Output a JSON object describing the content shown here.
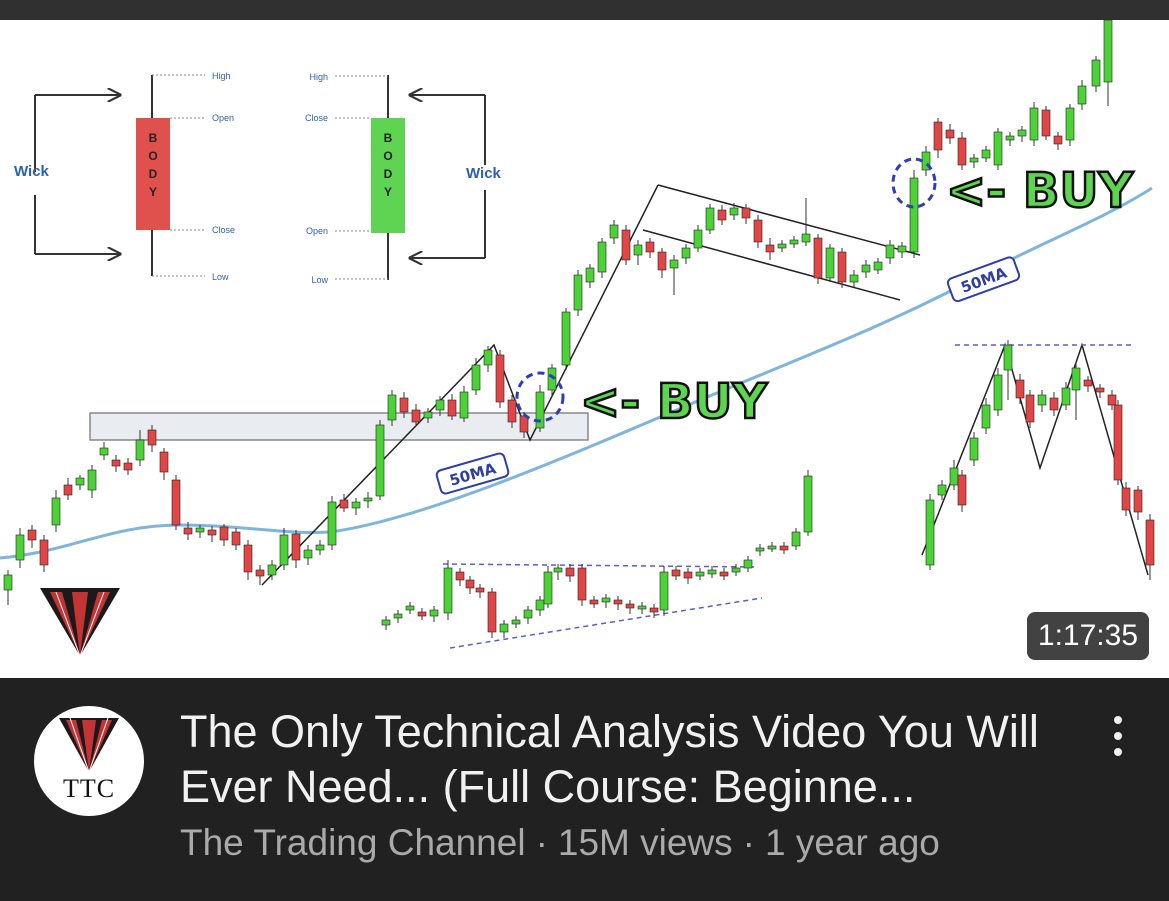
{
  "thumbnail": {
    "duration": "1:17:35",
    "anatomy": {
      "wick_left": "Wick",
      "wick_right": "Wick",
      "body": "BODY",
      "red_labels": [
        "High",
        "Open",
        "Close",
        "Low"
      ],
      "green_labels": [
        "High",
        "Close",
        "Open",
        "Low"
      ]
    },
    "buy_label_1": "<- BUY",
    "buy_label_2": "<- BUY",
    "ma_label_1": "50MA",
    "ma_label_2": "50MA"
  },
  "channel": {
    "avatar_text": "TTC",
    "name": "The Trading Channel"
  },
  "video": {
    "title": "The Only Technical Analysis Video You Will Ever Need... (Full Course: Beginne...",
    "views": "15M views",
    "age": "1 year ago"
  },
  "icons": {
    "more": "more-vert-icon",
    "logo": "ttc-logo-icon"
  },
  "colors": {
    "bull": "#4cd137",
    "bear": "#e04646",
    "ma_line": "#7fb5dc",
    "ma_badge": "#2d3ea8",
    "background": "#212121",
    "meta_text": "#aaaaaa"
  }
}
